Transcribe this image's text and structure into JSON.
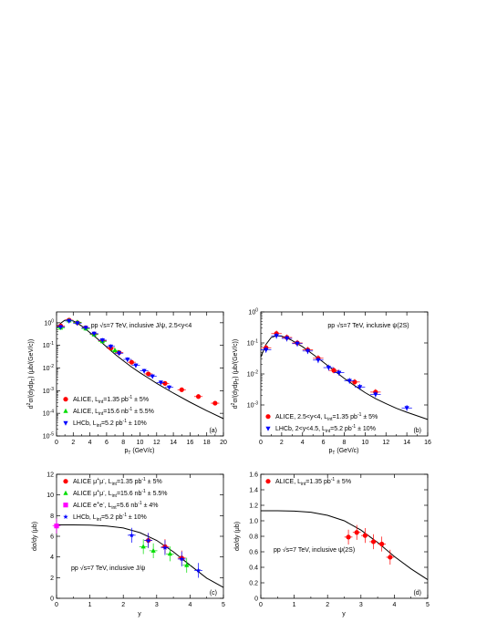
{
  "colors": {
    "alice": "#ff0000",
    "alice_mumu_15": "#00dd00",
    "alice_ee": "#ff00ff",
    "lhcb": "#0000ff",
    "theory": "#000000"
  },
  "chart_data": [
    {
      "id": "a",
      "type": "scatter",
      "panel_label": "(a)",
      "title": "pp √s=7 TeV, inclusive J/ψ, 2.5<y<4",
      "xlabel": "pT (GeV/c)",
      "ylabel": "d²σ/(dydpT) (μb/(GeV/c))",
      "xlim": [
        0,
        20
      ],
      "ylim": [
        1e-05,
        3
      ],
      "yscale": "log",
      "xticks": [
        0,
        2,
        4,
        6,
        8,
        10,
        12,
        14,
        16,
        18,
        20
      ],
      "yticks": [
        {
          "v": 1e-05,
          "e": "-5"
        },
        {
          "v": 0.0001,
          "e": "-4"
        },
        {
          "v": 0.001,
          "e": "-3"
        },
        {
          "v": 0.01,
          "e": "-2"
        },
        {
          "v": 0.1,
          "e": "-1"
        },
        {
          "v": 1,
          "e": "0"
        }
      ],
      "grid": false,
      "legend_position": "bottom-left",
      "curve": [
        [
          0,
          0.55
        ],
        [
          0.5,
          0.95
        ],
        [
          1.0,
          1.3
        ],
        [
          1.5,
          1.35
        ],
        [
          2,
          1.2
        ],
        [
          2.5,
          0.95
        ],
        [
          3,
          0.72
        ],
        [
          4,
          0.37
        ],
        [
          5,
          0.18
        ],
        [
          6,
          0.085
        ],
        [
          7,
          0.041
        ],
        [
          8,
          0.021
        ],
        [
          9,
          0.011
        ],
        [
          10,
          0.0062
        ],
        [
          11,
          0.0036
        ],
        [
          12,
          0.0021
        ],
        [
          14,
          0.00078
        ],
        [
          16,
          0.00031
        ],
        [
          18,
          0.00013
        ],
        [
          20,
          5.8e-05
        ]
      ],
      "series": [
        {
          "name": "ALICE, Lint=1.35 pb⁻¹ ± 5%",
          "legend_main": "ALICE, L",
          "legend_sub": "int",
          "legend_rest": "=1.35 pb",
          "legend_exp": "-1",
          "legend_tail": " ± 5%",
          "marker": "circle",
          "color": "#ff0000",
          "points": [
            [
              0.5,
              0.72
            ],
            [
              1.5,
              1.3
            ],
            [
              2.5,
              1.0
            ],
            [
              3.5,
              0.6
            ],
            [
              4.5,
              0.32
            ],
            [
              5.5,
              0.16
            ],
            [
              6.5,
              0.075
            ],
            [
              7.5,
              0.048
            ],
            [
              9,
              0.018
            ],
            [
              11,
              0.0055
            ],
            [
              13,
              0.0021
            ],
            [
              15,
              0.0011
            ],
            [
              17,
              0.00055
            ],
            [
              19,
              0.00028
            ]
          ]
        },
        {
          "name": "ALICE, Lint=15.6 nb⁻¹ ± 5.5%",
          "legend_main": "ALICE, L",
          "legend_sub": "int",
          "legend_rest": "=15.6 nb",
          "legend_exp": "-1",
          "legend_tail": " ± 5.5%",
          "marker": "triangle-up",
          "color": "#00dd00",
          "points": [
            [
              0.5,
              0.6
            ],
            [
              1.5,
              1.25
            ],
            [
              2.5,
              1.05
            ],
            [
              3.5,
              0.55
            ],
            [
              4.5,
              0.3
            ],
            [
              5.5,
              0.15
            ],
            [
              7,
              0.06
            ]
          ]
        },
        {
          "name": "LHCb, Lint=5.2 pb⁻¹ ± 10%",
          "legend_main": "LHCb, L",
          "legend_sub": "int",
          "legend_rest": "=5.2 pb",
          "legend_exp": "-1",
          "legend_tail": " ± 10%",
          "marker": "triangle-down",
          "color": "#0000ff",
          "points": [
            [
              0.5,
              0.65
            ],
            [
              1.5,
              1.2
            ],
            [
              2.5,
              0.95
            ],
            [
              3.5,
              0.6
            ],
            [
              4.5,
              0.33
            ],
            [
              5.5,
              0.17
            ],
            [
              6.5,
              0.09
            ],
            [
              7.5,
              0.045
            ],
            [
              8.5,
              0.024
            ],
            [
              9.5,
              0.013
            ],
            [
              10.5,
              0.0075
            ],
            [
              11.5,
              0.0043
            ],
            [
              12.5,
              0.0023
            ],
            [
              13.5,
              0.0014
            ]
          ]
        }
      ]
    },
    {
      "id": "b",
      "type": "scatter",
      "panel_label": "(b)",
      "title": "pp √s=7 TeV, inclusive ψ(2S)",
      "xlabel": "pT (GeV/c)",
      "ylabel": "d²σ/(dydpT) (μb/(GeV/c))",
      "xlim": [
        0,
        16
      ],
      "ylim": [
        0.0001,
        1
      ],
      "yscale": "log",
      "xticks": [
        0,
        2,
        4,
        6,
        8,
        10,
        12,
        14,
        16
      ],
      "yticks": [
        {
          "v": 0.001,
          "e": "-3"
        },
        {
          "v": 0.01,
          "e": "-2"
        },
        {
          "v": 0.1,
          "e": "-1"
        },
        {
          "v": 1,
          "e": "0"
        }
      ],
      "grid": false,
      "legend_position": "bottom-left",
      "curve": [
        [
          0,
          0.035
        ],
        [
          0.5,
          0.09
        ],
        [
          1.0,
          0.15
        ],
        [
          1.5,
          0.17
        ],
        [
          2,
          0.165
        ],
        [
          2.5,
          0.145
        ],
        [
          3,
          0.12
        ],
        [
          4,
          0.075
        ],
        [
          5,
          0.043
        ],
        [
          6,
          0.024
        ],
        [
          7,
          0.013
        ],
        [
          8,
          0.0072
        ],
        [
          9,
          0.0042
        ],
        [
          10,
          0.0025
        ],
        [
          11,
          0.0016
        ],
        [
          12,
          0.0011
        ],
        [
          13,
          0.00078
        ],
        [
          14,
          0.00058
        ],
        [
          16,
          0.00034
        ]
      ],
      "series": [
        {
          "name": "ALICE, 2.5<y<4, Lint=1.35 pb⁻¹ ± 5%",
          "legend_main": "ALICE, 2.5<y<4, L",
          "legend_sub": "int",
          "legend_rest": "=1.35 pb",
          "legend_exp": "-1",
          "legend_tail": " ± 5%",
          "marker": "circle",
          "color": "#ff0000",
          "points": [
            [
              0.5,
              0.07
            ],
            [
              1.5,
              0.2
            ],
            [
              2.5,
              0.15
            ],
            [
              3.5,
              0.1
            ],
            [
              4.5,
              0.06
            ],
            [
              5.5,
              0.032
            ],
            [
              7,
              0.013
            ],
            [
              9,
              0.0055
            ],
            [
              11,
              0.0026
            ]
          ]
        },
        {
          "name": "LHCb, 2<y<4.5, Lint=5.2 pb⁻¹ ± 10%",
          "legend_main": "LHCb,  2<y<4.5, L",
          "legend_sub": "int",
          "legend_rest": "=5.2 pb",
          "legend_exp": "-1",
          "legend_tail": " ± 10%",
          "marker": "triangle-down",
          "color": "#0000ff",
          "points": [
            [
              0.5,
              0.06
            ],
            [
              1.5,
              0.17
            ],
            [
              2.5,
              0.14
            ],
            [
              3.5,
              0.095
            ],
            [
              4.5,
              0.055
            ],
            [
              5.5,
              0.028
            ],
            [
              6.5,
              0.016
            ],
            [
              7.5,
              0.011
            ],
            [
              8.5,
              0.006
            ],
            [
              9.5,
              0.0038
            ],
            [
              11,
              0.0022
            ],
            [
              14,
              0.0008
            ]
          ]
        }
      ]
    },
    {
      "id": "c",
      "type": "scatter",
      "panel_label": "(c)",
      "title": "pp √s=7 TeV, inclusive J/ψ",
      "xlabel": "y",
      "ylabel": "dσ/dy (μb)",
      "xlim": [
        0,
        5
      ],
      "ylim": [
        0,
        12
      ],
      "yscale": "linear",
      "xticks": [
        0,
        1,
        2,
        3,
        4,
        5
      ],
      "yticks": [
        {
          "v": 0,
          "t": "0"
        },
        {
          "v": 2,
          "t": "2"
        },
        {
          "v": 4,
          "t": "4"
        },
        {
          "v": 6,
          "t": "6"
        },
        {
          "v": 8,
          "t": "8"
        },
        {
          "v": 10,
          "t": "10"
        },
        {
          "v": 12,
          "t": "12"
        }
      ],
      "grid": false,
      "legend_position": "top-left",
      "curve": [
        [
          0,
          7.1
        ],
        [
          0.5,
          7.1
        ],
        [
          1.0,
          7.08
        ],
        [
          1.5,
          7.0
        ],
        [
          2.0,
          6.8
        ],
        [
          2.5,
          6.35
        ],
        [
          3.0,
          5.6
        ],
        [
          3.5,
          4.5
        ],
        [
          4.0,
          3.2
        ],
        [
          4.5,
          1.95
        ],
        [
          5.0,
          1.05
        ]
      ],
      "series": [
        {
          "name": "ALICE μ⁺μ⁻, Lint=1.35 pb⁻¹ ± 5%",
          "legend_main": "ALICE μ",
          "legend_sup1": "+",
          "legend_mid": "μ",
          "legend_sup2": "-",
          "legend_comma": ", L",
          "legend_sub": "int",
          "legend_rest": "=1.35 pb",
          "legend_exp": "-1",
          "legend_tail": " ± 5%",
          "marker": "circle",
          "color": "#ff0000",
          "points": [
            [
              2.75,
              5.6
            ],
            [
              3.25,
              5.0
            ],
            [
              3.75,
              3.9
            ]
          ]
        },
        {
          "name": "ALICE μ⁺μ⁻, Lint=15.6 nb⁻¹ ± 5.5%",
          "legend_main": "ALICE μ",
          "legend_sup1": "+",
          "legend_mid": "μ",
          "legend_sup2": "-",
          "legend_comma": ", L",
          "legend_sub": "int",
          "legend_rest": "=15.6 nb",
          "legend_exp": "-1",
          "legend_tail": " ± 5.5%",
          "marker": "triangle-up",
          "color": "#00dd00",
          "points": [
            [
              2.6,
              5.0
            ],
            [
              2.9,
              4.6
            ],
            [
              3.4,
              4.3
            ],
            [
              3.9,
              3.2
            ]
          ]
        },
        {
          "name": "ALICE e⁺e⁻, Lint=5.6 nb⁻¹ ± 4%",
          "legend_main": "ALICE e",
          "legend_sup1": "+",
          "legend_mid": "e",
          "legend_sup2": "-",
          "legend_comma": ", L",
          "legend_sub": "int",
          "legend_rest": "=5.6 nb",
          "legend_exp": "-1",
          "legend_tail": " ± 4%",
          "marker": "square",
          "color": "#ff00ff",
          "points": [
            [
              0,
              7.0
            ]
          ]
        },
        {
          "name": "LHCb, Lint=5.2 pb⁻¹ ± 10%",
          "legend_main": "LHCb, L",
          "legend_sub": "int",
          "legend_rest": "=5.2 pb",
          "legend_exp": "-1",
          "legend_tail": " ± 10%",
          "marker": "star",
          "color": "#0000ff",
          "points": [
            [
              2.25,
              6.1
            ],
            [
              2.75,
              5.6
            ],
            [
              3.25,
              4.9
            ],
            [
              3.75,
              3.8
            ],
            [
              4.25,
              2.7
            ]
          ]
        }
      ]
    },
    {
      "id": "d",
      "type": "scatter",
      "panel_label": "(d)",
      "title": "pp √s=7 TeV, inclusive ψ(2S)",
      "xlabel": "y",
      "ylabel": "dσ/dy (μb)",
      "xlim": [
        0,
        5
      ],
      "ylim": [
        0,
        1.6
      ],
      "yscale": "linear",
      "xticks": [
        0,
        1,
        2,
        3,
        4,
        5
      ],
      "yticks": [
        {
          "v": 0,
          "t": "0"
        },
        {
          "v": 0.2,
          "t": "0.2"
        },
        {
          "v": 0.4,
          "t": "0.4"
        },
        {
          "v": 0.6,
          "t": "0.6"
        },
        {
          "v": 0.8,
          "t": "0.8"
        },
        {
          "v": 1.0,
          "t": "1.0"
        },
        {
          "v": 1.2,
          "t": "1.2"
        },
        {
          "v": 1.4,
          "t": "1.4"
        },
        {
          "v": 1.6,
          "t": "1.6"
        }
      ],
      "grid": false,
      "legend_position": "top-left",
      "curve": [
        [
          0,
          1.13
        ],
        [
          0.5,
          1.13
        ],
        [
          1.0,
          1.125
        ],
        [
          1.5,
          1.11
        ],
        [
          2.0,
          1.07
        ],
        [
          2.5,
          1.0
        ],
        [
          3.0,
          0.88
        ],
        [
          3.5,
          0.72
        ],
        [
          4.0,
          0.54
        ],
        [
          4.5,
          0.38
        ],
        [
          5.0,
          0.24
        ]
      ],
      "series": [
        {
          "name": "ALICE, Lint=1.35 pb⁻¹ ± 5%",
          "legend_main": "ALICE, L",
          "legend_sub": "int",
          "legend_rest": "=1.35 pb",
          "legend_exp": "-1",
          "legend_tail": " ± 5%",
          "marker": "circle",
          "color": "#ff0000",
          "points": [
            [
              2.625,
              0.79
            ],
            [
              2.875,
              0.85
            ],
            [
              3.125,
              0.81
            ],
            [
              3.375,
              0.73
            ],
            [
              3.625,
              0.7
            ],
            [
              3.875,
              0.53
            ]
          ]
        }
      ]
    }
  ]
}
